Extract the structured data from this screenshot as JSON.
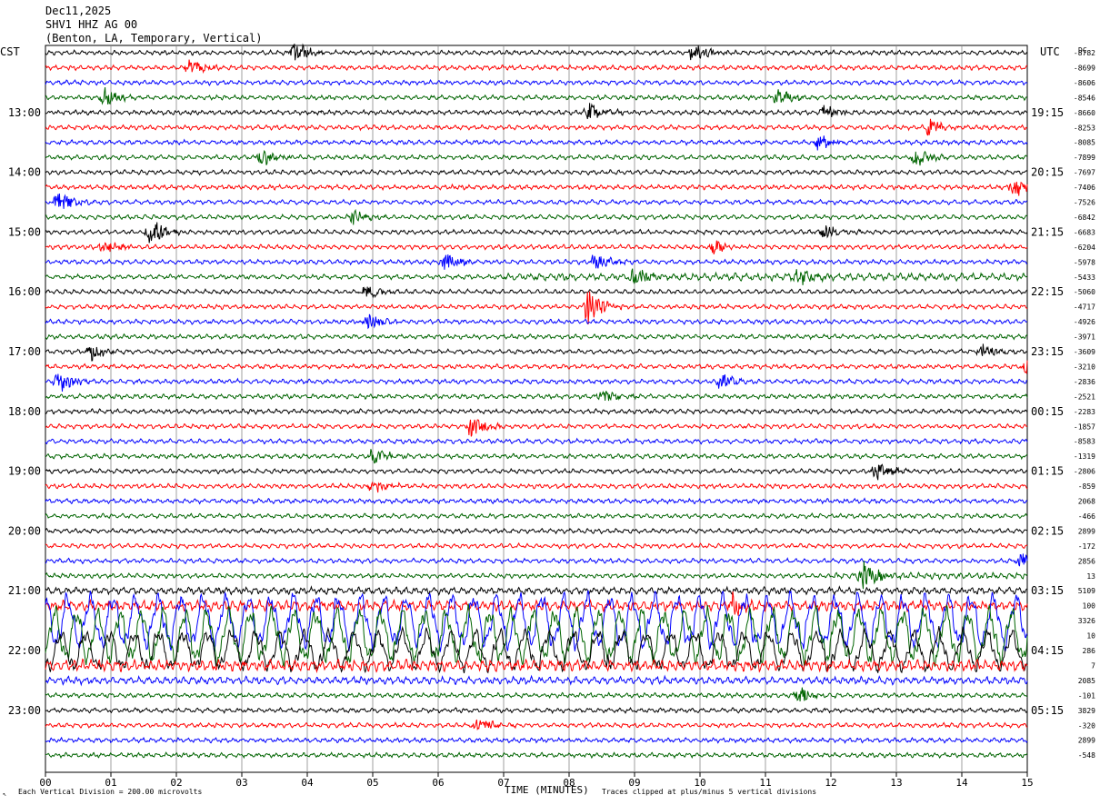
{
  "header": {
    "date": "Dec11,2025",
    "station": "SHV1 HHZ AG 00",
    "location": "(Benton, LA, Temporary, Vertical)"
  },
  "left_axis_label": "CST",
  "right_axis_label": "UTC",
  "dc_label": "DC",
  "footer": {
    "scale": "Each Vertical Division =  200.00 microvolts",
    "xlabel": "TIME (MINUTES)",
    "clip": "Traces clipped at plus/minus 5 vertical divisions"
  },
  "chart_data": {
    "type": "line",
    "title": "",
    "xlabel": "TIME (MINUTES)",
    "x_ticks": [
      "00",
      "01",
      "02",
      "03",
      "04",
      "05",
      "06",
      "07",
      "08",
      "09",
      "10",
      "11",
      "12",
      "13",
      "14",
      "15"
    ],
    "xlim": [
      0,
      15
    ],
    "grid": true,
    "trace_count": 48,
    "trace_colors": [
      "#000000",
      "#ff0000",
      "#0000ff",
      "#006400"
    ],
    "cst_labels": [
      "13:00",
      "14:00",
      "15:00",
      "16:00",
      "17:00",
      "18:00",
      "19:00",
      "20:00",
      "21:00",
      "22:00",
      "23:00"
    ],
    "utc_labels": [
      "19:15",
      "20:15",
      "21:15",
      "22:15",
      "23:15",
      "00:15",
      "01:15",
      "02:15",
      "03:15",
      "04:15",
      "05:15"
    ],
    "dc_offsets": [
      "-8782",
      "-8699",
      "-8606",
      "-8546",
      "-8660",
      "-8253",
      "-8085",
      "-7899",
      "-7697",
      "-7406",
      "-7526",
      "-6842",
      "-6683",
      "-6204",
      "-5978",
      "-5433",
      "-5060",
      "-4717",
      "-4926",
      "-3971",
      "-3609",
      "-3210",
      "-2836",
      "-2521",
      "-2283",
      "-1857",
      "-8583",
      "-1319",
      "-2806",
      "-859",
      "2068",
      "-466",
      "2899",
      "-172",
      "2856",
      "13",
      "5109",
      "100",
      "3326",
      "10",
      "286",
      "7",
      "2085",
      "-101",
      "3829",
      "-320",
      "2899",
      "-548"
    ],
    "events": [
      {
        "row": 0,
        "minute": 3.8,
        "amp": 1.8
      },
      {
        "row": 0,
        "minute": 9.9,
        "amp": 1.8
      },
      {
        "row": 1,
        "minute": 2.2,
        "amp": 1.4
      },
      {
        "row": 3,
        "minute": 0.9,
        "amp": 1.6
      },
      {
        "row": 3,
        "minute": 11.2,
        "amp": 1.3
      },
      {
        "row": 4,
        "minute": 8.3,
        "amp": 1.6
      },
      {
        "row": 4,
        "minute": 11.9,
        "amp": 1.3
      },
      {
        "row": 5,
        "minute": 13.5,
        "amp": 1.4
      },
      {
        "row": 6,
        "minute": 11.8,
        "amp": 1.4
      },
      {
        "row": 7,
        "minute": 3.3,
        "amp": 1.3
      },
      {
        "row": 7,
        "minute": 13.3,
        "amp": 1.6
      },
      {
        "row": 9,
        "minute": 14.8,
        "amp": 1.6
      },
      {
        "row": 10,
        "minute": 0.2,
        "amp": 1.8
      },
      {
        "row": 11,
        "minute": 4.7,
        "amp": 1.2
      },
      {
        "row": 12,
        "minute": 1.6,
        "amp": 2.6
      },
      {
        "row": 12,
        "minute": 11.9,
        "amp": 1.4
      },
      {
        "row": 13,
        "minute": 0.9,
        "amp": 1.3
      },
      {
        "row": 13,
        "minute": 10.2,
        "amp": 1.3
      },
      {
        "row": 14,
        "minute": 6.1,
        "amp": 1.6
      },
      {
        "row": 14,
        "minute": 8.4,
        "amp": 1.3
      },
      {
        "row": 15,
        "minute": 9.0,
        "amp": 1.5
      },
      {
        "row": 15,
        "minute": 11.5,
        "amp": 1.6
      },
      {
        "row": 16,
        "minute": 4.9,
        "amp": 1.3
      },
      {
        "row": 17,
        "minute": 8.3,
        "amp": 3.2
      },
      {
        "row": 18,
        "minute": 4.9,
        "amp": 1.8
      },
      {
        "row": 20,
        "minute": 0.7,
        "amp": 1.4
      },
      {
        "row": 20,
        "minute": 14.3,
        "amp": 1.3
      },
      {
        "row": 21,
        "minute": 15.0,
        "amp": 1.6
      },
      {
        "row": 22,
        "minute": 0.2,
        "amp": 1.8
      },
      {
        "row": 22,
        "minute": 10.3,
        "amp": 1.3
      },
      {
        "row": 23,
        "minute": 8.5,
        "amp": 1.2
      },
      {
        "row": 25,
        "minute": 6.5,
        "amp": 2.0
      },
      {
        "row": 27,
        "minute": 5.0,
        "amp": 1.3
      },
      {
        "row": 28,
        "minute": 12.7,
        "amp": 1.6
      },
      {
        "row": 29,
        "minute": 5.0,
        "amp": 1.2
      },
      {
        "row": 35,
        "minute": 12.5,
        "amp": 2.4
      },
      {
        "row": 34,
        "minute": 14.9,
        "amp": 1.5
      },
      {
        "row": 37,
        "minute": 10.5,
        "amp": 1.6
      },
      {
        "row": 40,
        "minute": 8.5,
        "amp": 1.3
      },
      {
        "row": 43,
        "minute": 11.5,
        "amp": 1.5
      },
      {
        "row": 45,
        "minute": 6.6,
        "amp": 1.3
      }
    ],
    "noisy_rows": [
      {
        "row": 15,
        "from": 7.0,
        "to": 15.0,
        "amp": 1.6
      },
      {
        "row": 35,
        "from": 12.0,
        "to": 15.0,
        "amp": 1.4
      },
      {
        "row": 36,
        "from": 0.0,
        "to": 15.0,
        "amp": 1.5
      },
      {
        "row": 37,
        "from": 0.0,
        "to": 15.0,
        "amp": 2.2
      },
      {
        "row": 38,
        "from": 0.0,
        "to": 15.0,
        "amp": 4.0
      },
      {
        "row": 39,
        "from": 0.0,
        "to": 15.0,
        "amp": 4.0
      },
      {
        "row": 40,
        "from": 0.0,
        "to": 15.0,
        "amp": 3.0
      },
      {
        "row": 41,
        "from": 0.0,
        "to": 15.0,
        "amp": 2.4
      },
      {
        "row": 42,
        "from": 0.0,
        "to": 15.0,
        "amp": 1.6
      }
    ]
  }
}
